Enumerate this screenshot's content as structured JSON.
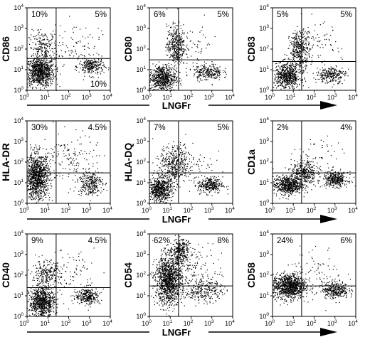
{
  "figure": {
    "x_axis_title": "LNGFr",
    "tick_base": "10",
    "tick_exponents": [
      "0",
      "1",
      "2",
      "3",
      "4"
    ]
  },
  "chart_data": [
    {
      "type": "scatter",
      "ylabel": "CD86",
      "xscale": "log",
      "yscale": "log",
      "xlim": [
        1,
        10000
      ],
      "ylim": [
        1,
        10000
      ],
      "quadrant_labels": {
        "upper_left": "10%",
        "upper_right": "5%",
        "lower_right": "10%"
      },
      "gate": {
        "x": 25,
        "y": 35
      },
      "populations": [
        {
          "name": "",
          "center": [
            4,
            8
          ],
          "spread": [
            0.35,
            0.35
          ],
          "points": 900
        },
        {
          "name": "",
          "center": [
            6,
            120
          ],
          "spread": [
            0.35,
            0.4
          ],
          "points": 220
        },
        {
          "name": "",
          "center": [
            1200,
            15
          ],
          "spread": [
            0.3,
            0.22
          ],
          "points": 260
        },
        {
          "name": "",
          "center": [
            200,
            200
          ],
          "spread": [
            0.6,
            0.5
          ],
          "points": 80
        }
      ]
    },
    {
      "type": "scatter",
      "ylabel": "CD80",
      "xscale": "log",
      "yscale": "log",
      "xlim": [
        1,
        10000
      ],
      "ylim": [
        1,
        10000
      ],
      "quadrant_labels": {
        "upper_left": "6%",
        "upper_right": "5%"
      },
      "gate": {
        "x": 25,
        "y": 30
      },
      "populations": [
        {
          "name": "",
          "center": [
            4,
            4
          ],
          "spread": [
            0.32,
            0.32
          ],
          "points": 650
        },
        {
          "name": "",
          "center": [
            18,
            150
          ],
          "spread": [
            0.22,
            0.5
          ],
          "points": 380
        },
        {
          "name": "",
          "center": [
            600,
            8
          ],
          "spread": [
            0.35,
            0.2
          ],
          "points": 260
        },
        {
          "name": "",
          "center": [
            150,
            150
          ],
          "spread": [
            0.55,
            0.55
          ],
          "points": 60
        }
      ]
    },
    {
      "type": "scatter",
      "ylabel": "CD83",
      "xscale": "log",
      "yscale": "log",
      "xlim": [
        1,
        10000
      ],
      "ylim": [
        1,
        10000
      ],
      "quadrant_labels": {
        "upper_left": "5%",
        "upper_right": "5%"
      },
      "gate": {
        "x": 25,
        "y": 25
      },
      "populations": [
        {
          "name": "",
          "center": [
            5,
            5
          ],
          "spread": [
            0.32,
            0.32
          ],
          "points": 650
        },
        {
          "name": "",
          "center": [
            20,
            100
          ],
          "spread": [
            0.25,
            0.45
          ],
          "points": 380
        },
        {
          "name": "",
          "center": [
            600,
            6
          ],
          "spread": [
            0.35,
            0.2
          ],
          "points": 260
        },
        {
          "name": "",
          "center": [
            150,
            150
          ],
          "spread": [
            0.55,
            0.55
          ],
          "points": 60
        }
      ]
    },
    {
      "type": "scatter",
      "ylabel": "HLA-DR",
      "xscale": "log",
      "yscale": "log",
      "xlim": [
        1,
        10000
      ],
      "ylim": [
        1,
        10000
      ],
      "quadrant_labels": {
        "upper_left": "30%",
        "upper_right": "4.5%"
      },
      "gate": {
        "x": 25,
        "y": 30
      },
      "populations": [
        {
          "name": "",
          "center": [
            3,
            20
          ],
          "spread": [
            0.3,
            0.55
          ],
          "points": 1100
        },
        {
          "name": "",
          "center": [
            1000,
            10
          ],
          "spread": [
            0.3,
            0.3
          ],
          "points": 280
        },
        {
          "name": "",
          "center": [
            150,
            150
          ],
          "spread": [
            0.6,
            0.6
          ],
          "points": 140
        }
      ]
    },
    {
      "type": "scatter",
      "ylabel": "HLA-DQ",
      "xscale": "log",
      "yscale": "log",
      "xlim": [
        1,
        10000
      ],
      "ylim": [
        1,
        10000
      ],
      "quadrant_labels": {
        "upper_left": "7%",
        "upper_right": "5%"
      },
      "gate": {
        "x": 25,
        "y": 30
      },
      "populations": [
        {
          "name": "",
          "center": [
            3,
            5
          ],
          "spread": [
            0.3,
            0.3
          ],
          "points": 650
        },
        {
          "name": "",
          "center": [
            15,
            80
          ],
          "spread": [
            0.35,
            0.45
          ],
          "points": 400
        },
        {
          "name": "",
          "center": [
            800,
            8
          ],
          "spread": [
            0.3,
            0.2
          ],
          "points": 300
        },
        {
          "name": "",
          "center": [
            100,
            100
          ],
          "spread": [
            0.55,
            0.55
          ],
          "points": 80
        }
      ]
    },
    {
      "type": "scatter",
      "ylabel": "CD1a",
      "xscale": "log",
      "yscale": "log",
      "xlim": [
        1,
        10000
      ],
      "ylim": [
        1,
        10000
      ],
      "quadrant_labels": {
        "upper_left": "2%",
        "upper_right": "4%"
      },
      "gate": {
        "x": 25,
        "y": 30
      },
      "populations": [
        {
          "name": "",
          "center": [
            5,
            8
          ],
          "spread": [
            0.35,
            0.22
          ],
          "points": 600
        },
        {
          "name": "",
          "center": [
            30,
            30
          ],
          "spread": [
            0.3,
            0.3
          ],
          "points": 350
        },
        {
          "name": "",
          "center": [
            1000,
            15
          ],
          "spread": [
            0.3,
            0.18
          ],
          "points": 350
        },
        {
          "name": "",
          "center": [
            150,
            150
          ],
          "spread": [
            0.55,
            0.55
          ],
          "points": 60
        }
      ]
    },
    {
      "type": "scatter",
      "ylabel": "CD40",
      "xscale": "log",
      "yscale": "log",
      "xlim": [
        1,
        10000
      ],
      "ylim": [
        1,
        10000
      ],
      "quadrant_labels": {
        "upper_left": "9%",
        "upper_right": "4.5%"
      },
      "gate": {
        "x": 25,
        "y": 25
      },
      "populations": [
        {
          "name": "",
          "center": [
            5,
            5
          ],
          "spread": [
            0.3,
            0.35
          ],
          "points": 800
        },
        {
          "name": "",
          "center": [
            8,
            100
          ],
          "spread": [
            0.35,
            0.35
          ],
          "points": 260
        },
        {
          "name": "",
          "center": [
            800,
            10
          ],
          "spread": [
            0.3,
            0.2
          ],
          "points": 280
        },
        {
          "name": "",
          "center": [
            150,
            150
          ],
          "spread": [
            0.55,
            0.55
          ],
          "points": 80
        }
      ]
    },
    {
      "type": "scatter",
      "ylabel": "CD54",
      "xscale": "log",
      "yscale": "log",
      "xlim": [
        1,
        10000
      ],
      "ylim": [
        1,
        10000
      ],
      "quadrant_labels": {
        "upper_left": "62%",
        "upper_right": "8%"
      },
      "gate": {
        "x": 25,
        "y": 30
      },
      "populations": [
        {
          "name": "",
          "center": [
            8,
            60
          ],
          "spread": [
            0.32,
            0.6
          ],
          "points": 1200
        },
        {
          "name": "",
          "center": [
            30,
            1500
          ],
          "spread": [
            0.25,
            0.3
          ],
          "points": 300
        },
        {
          "name": "",
          "center": [
            400,
            20
          ],
          "spread": [
            0.45,
            0.3
          ],
          "points": 260
        },
        {
          "name": "",
          "center": [
            200,
            200
          ],
          "spread": [
            0.6,
            0.6
          ],
          "points": 120
        }
      ]
    },
    {
      "type": "scatter",
      "ylabel": "CD58",
      "xscale": "log",
      "yscale": "log",
      "xlim": [
        1,
        10000
      ],
      "ylim": [
        1,
        10000
      ],
      "quadrant_labels": {
        "upper_left": "24%",
        "upper_right": "6%"
      },
      "gate": {
        "x": 25,
        "y": 30
      },
      "populations": [
        {
          "name": "",
          "center": [
            6,
            30
          ],
          "spread": [
            0.4,
            0.3
          ],
          "points": 1000
        },
        {
          "name": "",
          "center": [
            1000,
            20
          ],
          "spread": [
            0.32,
            0.2
          ],
          "points": 320
        },
        {
          "name": "",
          "center": [
            150,
            150
          ],
          "spread": [
            0.6,
            0.6
          ],
          "points": 80
        }
      ]
    }
  ]
}
